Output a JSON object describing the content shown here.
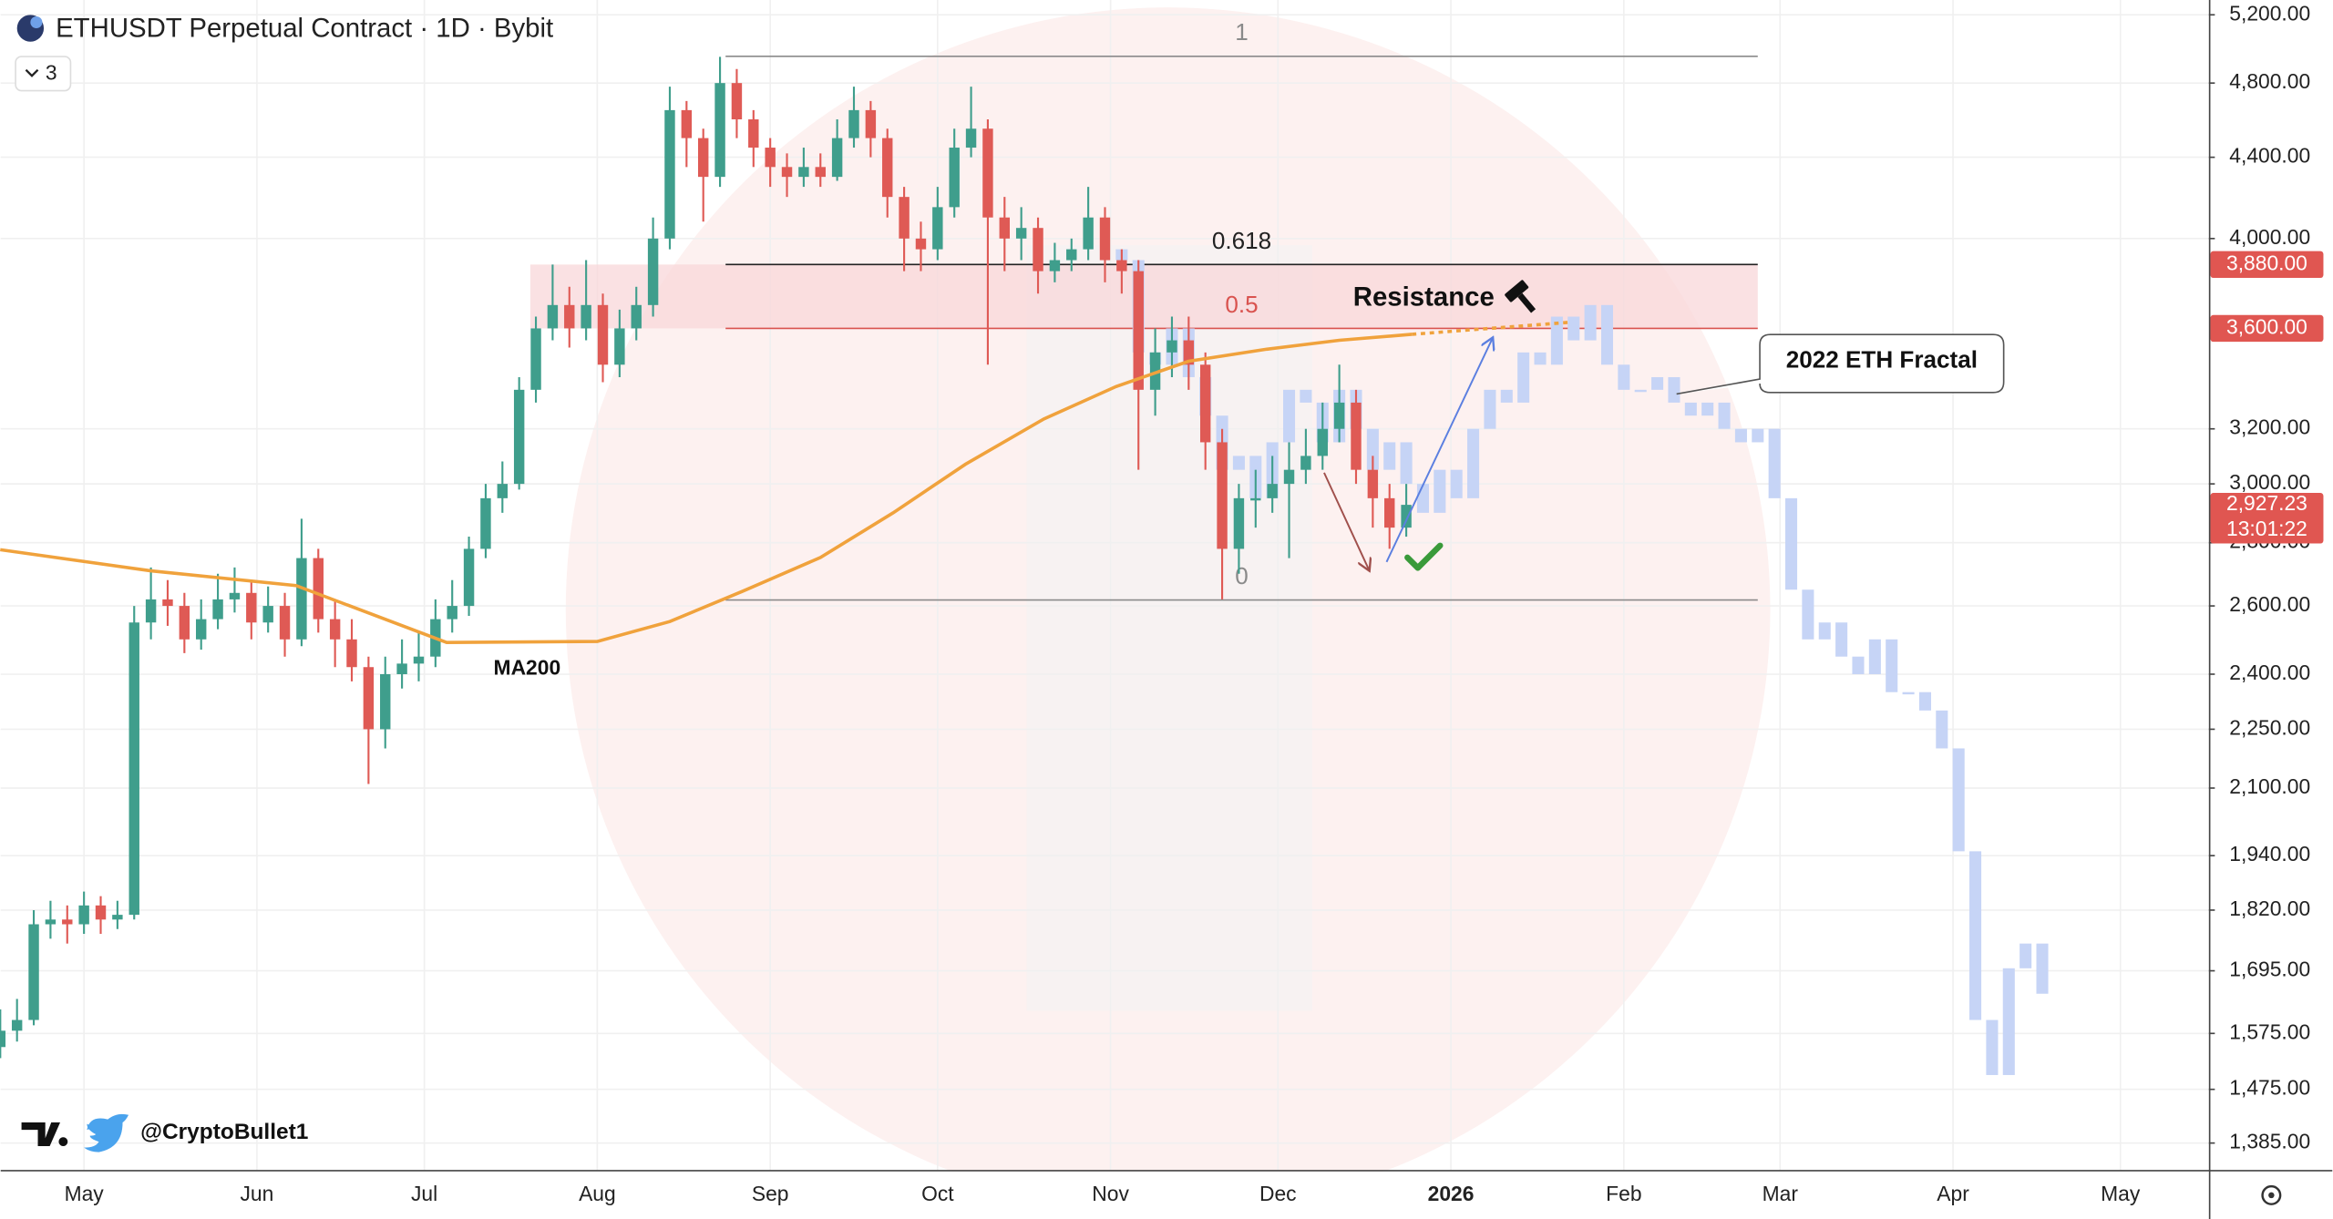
{
  "chart_data": {
    "type": "candlestick",
    "title": "ETHUSDT Perpetual Contract · 1D · Bybit",
    "indicator_count": 3,
    "log_scale": true,
    "grid": true,
    "xlim": [
      -14.93,
      380.86
    ],
    "xticks": [
      {
        "value": 0,
        "label": "May"
      },
      {
        "value": 31,
        "label": "Jun"
      },
      {
        "value": 61,
        "label": "Jul"
      },
      {
        "value": 92,
        "label": "Aug"
      },
      {
        "value": 123,
        "label": "Sep"
      },
      {
        "value": 153,
        "label": "Oct"
      },
      {
        "value": 184,
        "label": "Nov"
      },
      {
        "value": 214,
        "label": "Dec"
      },
      {
        "value": 245,
        "label": "2026"
      },
      {
        "value": 276,
        "label": "Feb"
      },
      {
        "value": 304,
        "label": "Mar"
      },
      {
        "value": 335,
        "label": "Apr"
      },
      {
        "value": 365,
        "label": "May"
      }
    ],
    "ylim": [
      1342,
      5291
    ],
    "yticks": [
      {
        "value": 5200,
        "label": "5,200.00"
      },
      {
        "value": 4800,
        "label": "4,800.00"
      },
      {
        "value": 4400,
        "label": "4,400.00"
      },
      {
        "value": 4000,
        "label": "4,000.00"
      },
      {
        "value": 3200,
        "label": "3,200.00"
      },
      {
        "value": 3000,
        "label": "3,000.00"
      },
      {
        "value": 2800,
        "label": "2,800.00"
      },
      {
        "value": 2600,
        "label": "2,600.00"
      },
      {
        "value": 2400,
        "label": "2,400.00"
      },
      {
        "value": 2250,
        "label": "2,250.00"
      },
      {
        "value": 2100,
        "label": "2,100.00"
      },
      {
        "value": 1940,
        "label": "1,940.00"
      },
      {
        "value": 1820,
        "label": "1,820.00"
      },
      {
        "value": 1695,
        "label": "1,695.00"
      },
      {
        "value": 1575,
        "label": "1,575.00"
      },
      {
        "value": 1475,
        "label": "1,475.00"
      },
      {
        "value": 1385,
        "label": "1,385.00"
      }
    ],
    "series": [
      {
        "up_color": "#3f9e8c",
        "down_color": "#df5a55",
        "x": [
          -15,
          -12,
          -9,
          -6,
          -3,
          0,
          3,
          6,
          9,
          12,
          15,
          18,
          21,
          24,
          27,
          30,
          33,
          36,
          39,
          42,
          45,
          48,
          51,
          54,
          57,
          60,
          63,
          66,
          69,
          72,
          75,
          78,
          81,
          84,
          87,
          90,
          93,
          96,
          99,
          102,
          105,
          108,
          111,
          114,
          117,
          120,
          123,
          126,
          129,
          132,
          135,
          138,
          141,
          144,
          147,
          150,
          153,
          156,
          159,
          162,
          165,
          168,
          171,
          174,
          177,
          180,
          183,
          186,
          189,
          192,
          195,
          198,
          201,
          204,
          207,
          210,
          213,
          216,
          219,
          222,
          225,
          228,
          231,
          234,
          237
        ],
        "open": [
          1550,
          1580,
          1600,
          1790,
          1800,
          1790,
          1830,
          1800,
          1810,
          2550,
          2620,
          2600,
          2500,
          2560,
          2620,
          2640,
          2550,
          2600,
          2500,
          2750,
          2560,
          2500,
          2420,
          2250,
          2400,
          2430,
          2450,
          2560,
          2600,
          2780,
          2950,
          3000,
          3350,
          3600,
          3700,
          3600,
          3700,
          3450,
          3600,
          3700,
          4000,
          4650,
          4500,
          4300,
          4800,
          4600,
          4450,
          4350,
          4300,
          4350,
          4300,
          4500,
          4650,
          4500,
          4200,
          4000,
          3950,
          4150,
          4450,
          4550,
          4100,
          4000,
          4050,
          3850,
          3900,
          3950,
          4100,
          3900,
          3850,
          3350,
          3500,
          3550,
          3450,
          3150,
          2780,
          2950,
          2950,
          3000,
          3050,
          3100,
          3200,
          3300,
          3050,
          2950,
          2850
        ],
        "high": [
          1620,
          1640,
          1820,
          1840,
          1830,
          1860,
          1850,
          1840,
          2600,
          2720,
          2680,
          2640,
          2620,
          2700,
          2720,
          2680,
          2660,
          2640,
          2880,
          2780,
          2620,
          2560,
          2450,
          2450,
          2500,
          2520,
          2620,
          2680,
          2820,
          3000,
          3080,
          3400,
          3650,
          3880,
          3780,
          3900,
          3750,
          3680,
          3780,
          4100,
          4780,
          4700,
          4550,
          4950,
          4880,
          4650,
          4500,
          4420,
          4450,
          4420,
          4600,
          4780,
          4700,
          4550,
          4250,
          4080,
          4250,
          4550,
          4780,
          4600,
          4200,
          4150,
          4100,
          3980,
          4000,
          4250,
          4150,
          3950,
          3900,
          3600,
          3650,
          3650,
          3500,
          3200,
          3000,
          3050,
          3100,
          3150,
          3200,
          3300,
          3450,
          3350,
          3100,
          3000,
          3000
        ],
        "low": [
          1530,
          1560,
          1590,
          1760,
          1750,
          1770,
          1770,
          1780,
          1800,
          2500,
          2540,
          2460,
          2470,
          2530,
          2580,
          2500,
          2520,
          2450,
          2480,
          2520,
          2420,
          2380,
          2110,
          2200,
          2360,
          2380,
          2420,
          2520,
          2570,
          2750,
          2900,
          2980,
          3300,
          3550,
          3520,
          3550,
          3380,
          3400,
          3550,
          3650,
          3950,
          4350,
          4080,
          4250,
          4500,
          4350,
          4250,
          4200,
          4250,
          4250,
          4280,
          4450,
          4400,
          4100,
          3850,
          3850,
          3900,
          4100,
          4400,
          3450,
          3850,
          3900,
          3750,
          3800,
          3850,
          3900,
          3800,
          3750,
          3050,
          3250,
          3400,
          3350,
          3050,
          2620,
          2700,
          2850,
          2900,
          2750,
          3000,
          3050,
          3150,
          3000,
          2850,
          2780,
          2820
        ],
        "close": [
          1580,
          1600,
          1790,
          1800,
          1790,
          1830,
          1800,
          1810,
          2550,
          2620,
          2600,
          2500,
          2560,
          2620,
          2640,
          2550,
          2600,
          2500,
          2750,
          2560,
          2500,
          2420,
          2250,
          2400,
          2430,
          2450,
          2560,
          2600,
          2780,
          2950,
          3000,
          3350,
          3600,
          3700,
          3600,
          3700,
          3450,
          3600,
          3700,
          4000,
          4650,
          4500,
          4300,
          4800,
          4600,
          4450,
          4350,
          4300,
          4350,
          4300,
          4500,
          4650,
          4500,
          4200,
          4000,
          3950,
          4150,
          4450,
          4550,
          4100,
          4000,
          4050,
          3850,
          3900,
          3950,
          4100,
          3900,
          3850,
          3350,
          3500,
          3550,
          3450,
          3150,
          2780,
          2950,
          2950,
          3000,
          3050,
          3100,
          3200,
          3300,
          3050,
          2950,
          2850,
          2927.23
        ]
      },
      {
        "name": "2022 ETH Fractal",
        "color": "#c6d4f6",
        "x": [
          186,
          189,
          192,
          195,
          198,
          201,
          204,
          207,
          210,
          213,
          216,
          219,
          222,
          225,
          228,
          231,
          234,
          237,
          240,
          243,
          246,
          249,
          252,
          255,
          258,
          261,
          264,
          267,
          270,
          273,
          276,
          279,
          282,
          285,
          288,
          291,
          294,
          297,
          300,
          303,
          306,
          309,
          312,
          315,
          318,
          321,
          324,
          327,
          330,
          333,
          336,
          339,
          342,
          345,
          348,
          351
        ],
        "open": [
          3950,
          3900,
          3500,
          3450,
          3600,
          3400,
          3250,
          3050,
          3100,
          2950,
          3150,
          3350,
          3300,
          3150,
          3350,
          3200,
          3050,
          3150,
          3000,
          2900,
          3050,
          2950,
          3200,
          3350,
          3300,
          3500,
          3450,
          3650,
          3550,
          3700,
          3450,
          3350,
          3350,
          3400,
          3300,
          3250,
          3300,
          3200,
          3150,
          3200,
          2950,
          2650,
          2500,
          2550,
          2450,
          2400,
          2500,
          2350,
          2350,
          2300,
          2200,
          1950,
          1600,
          1500,
          1700,
          1750
        ],
        "close": [
          3900,
          3500,
          3450,
          3600,
          3400,
          3250,
          3050,
          3100,
          2950,
          3150,
          3350,
          3300,
          3150,
          3350,
          3200,
          3050,
          3150,
          3000,
          2900,
          3050,
          2950,
          3200,
          3350,
          3300,
          3500,
          3450,
          3650,
          3550,
          3700,
          3450,
          3350,
          3350,
          3400,
          3300,
          3250,
          3300,
          3200,
          3150,
          3200,
          2950,
          2650,
          2500,
          2550,
          2450,
          2400,
          2500,
          2350,
          2350,
          2300,
          2200,
          1950,
          1600,
          1500,
          1700,
          1750,
          1650
        ]
      }
    ],
    "ma": {
      "label": "MA200",
      "color": "#f0a23c",
      "x": [
        -15,
        12,
        38,
        65,
        92,
        105,
        118,
        132,
        145,
        158,
        172,
        185,
        198,
        212,
        225,
        238
      ],
      "values": [
        2777,
        2709,
        2663,
        2491,
        2494,
        2553,
        2645,
        2752,
        2900,
        3070,
        3237,
        3363,
        3464,
        3513,
        3550,
        3575
      ],
      "projection_x": [
        238,
        266
      ],
      "projection_values": [
        3575,
        3625
      ]
    },
    "fib": {
      "x": [
        115,
        300
      ],
      "levels": [
        1,
        0.618,
        0.5,
        0
      ],
      "prices": [
        4953,
        3880,
        3600,
        2618
      ],
      "colors": [
        "#8a8a8a",
        "#222222",
        "#d9534f",
        "#8a8a8a"
      ]
    },
    "resistance": {
      "label": "Resistance",
      "x": [
        80,
        300
      ],
      "range": [
        3600,
        3880
      ],
      "color": "#f8d7d9"
    },
    "price_tags": [
      {
        "value": 3880,
        "label": "3,880.00"
      },
      {
        "value": 3600,
        "label": "3,600.00"
      }
    ],
    "last_price": {
      "value": 2927.23,
      "label": "2,927.23"
    },
    "countdown": "13:01:22",
    "watermark": "@CryptoBullet1"
  }
}
